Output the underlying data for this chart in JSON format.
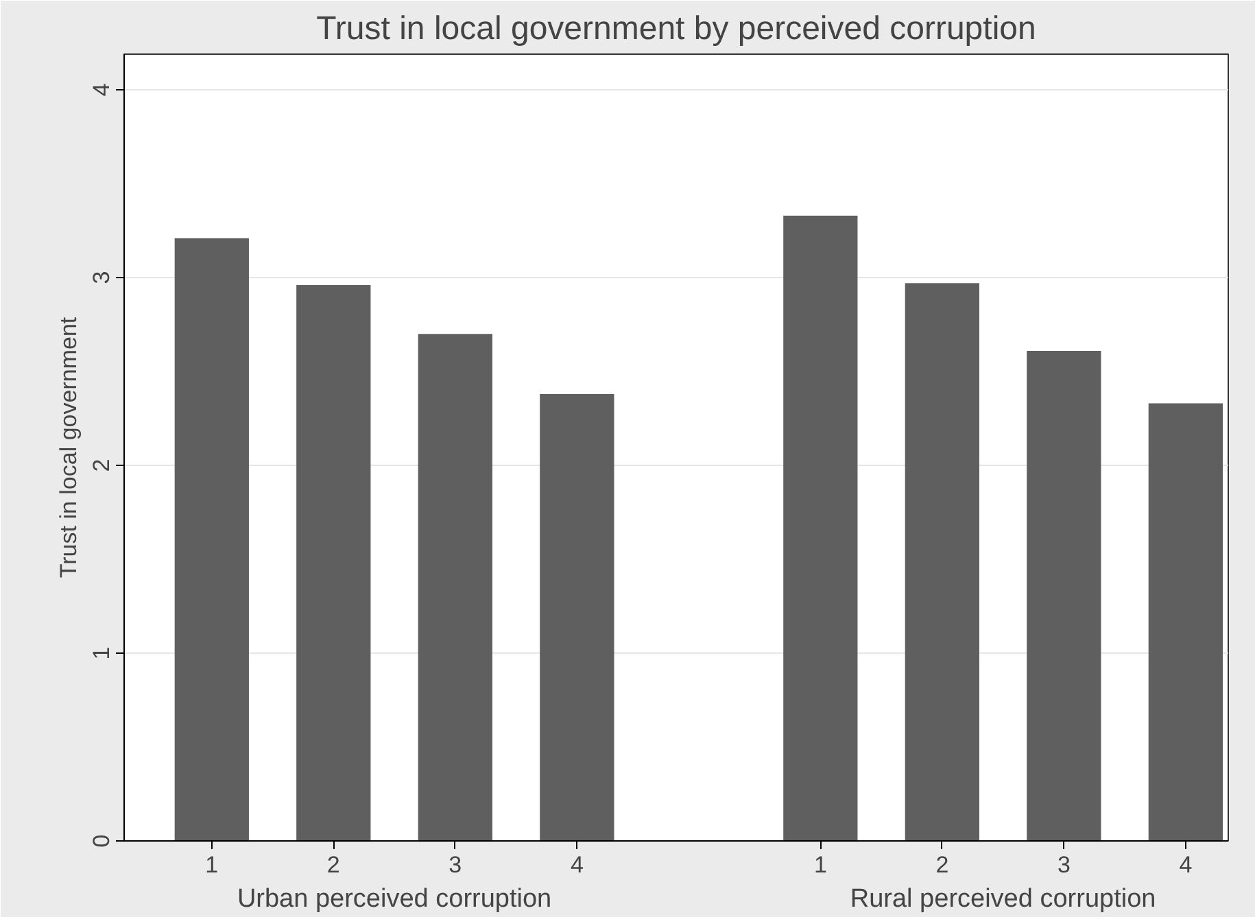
{
  "chart_data": {
    "type": "bar",
    "title": "Trust in local government by perceived corruption",
    "ylabel": "Trust in local government",
    "categories": [
      "1",
      "2",
      "3",
      "4",
      null,
      "1",
      "2",
      "3",
      "4"
    ],
    "values": [
      3.21,
      2.96,
      2.7,
      2.38,
      null,
      3.33,
      2.97,
      2.61,
      2.33
    ],
    "color": "#5f5f5f",
    "annotations": [
      "Urban perceived corruption",
      "Rural perceived corruption"
    ],
    "ylim": [
      0,
      4.19
    ],
    "yticks": [
      0,
      1,
      2,
      3,
      4
    ],
    "grid": "y"
  }
}
